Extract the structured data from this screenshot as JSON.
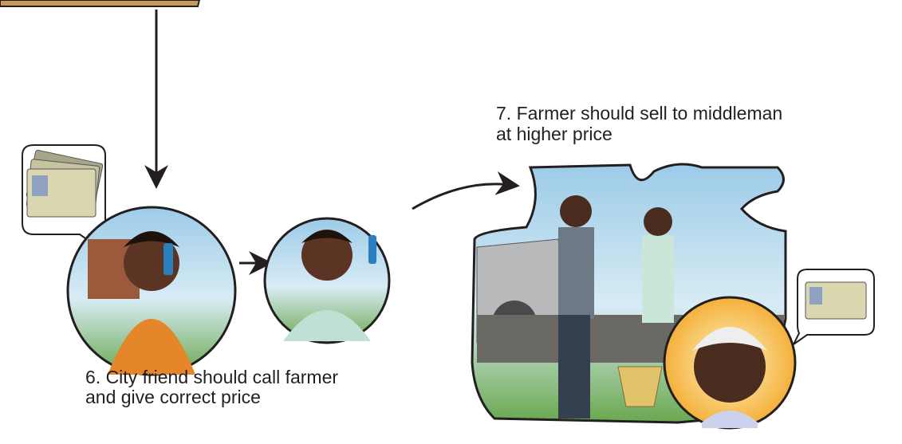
{
  "steps": [
    {
      "lines": [
        "6. City friend should call farmer",
        "and give correct price"
      ]
    },
    {
      "lines": [
        "7. Farmer should sell to middleman",
        "at higher price"
      ]
    }
  ]
}
